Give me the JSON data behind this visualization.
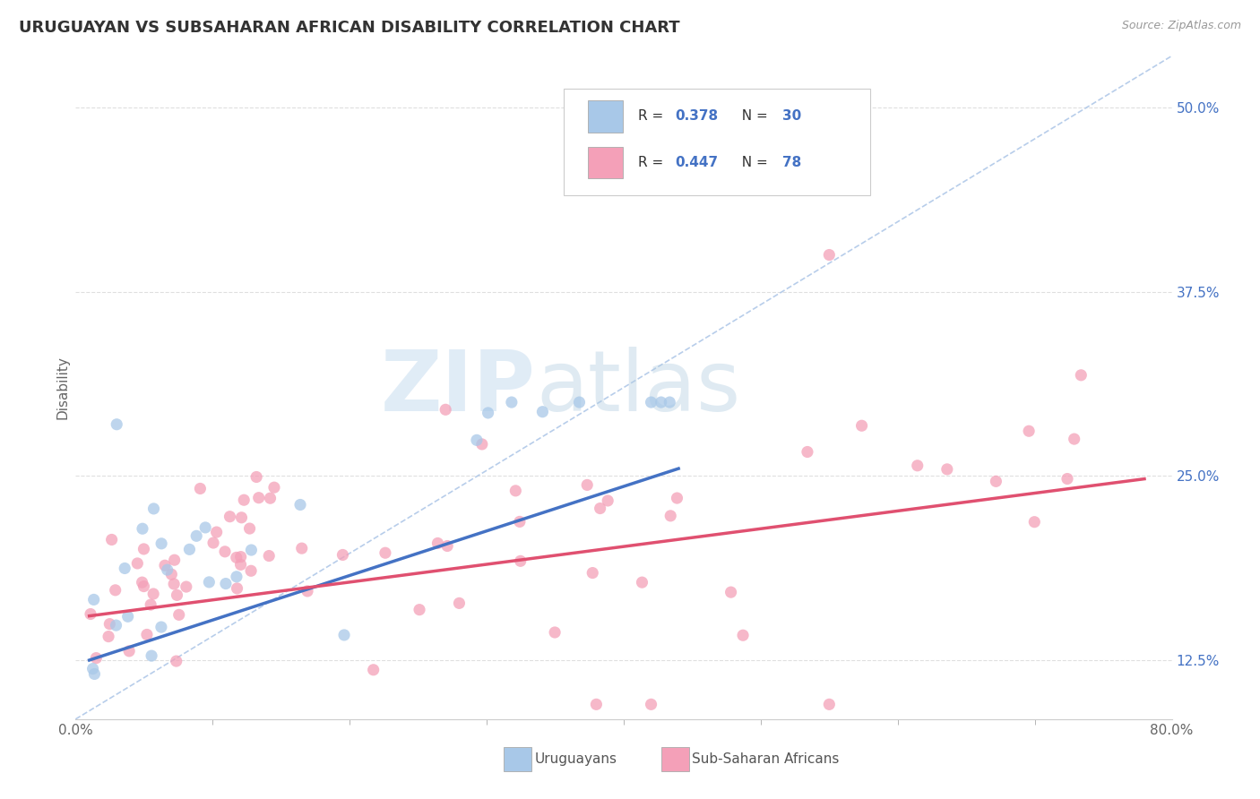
{
  "title": "URUGUAYAN VS SUBSAHARAN AFRICAN DISABILITY CORRELATION CHART",
  "source": "Source: ZipAtlas.com",
  "ylabel": "Disability",
  "xlim": [
    0.0,
    0.8
  ],
  "ylim": [
    0.085,
    0.535
  ],
  "yticks_right": [
    0.125,
    0.25,
    0.375,
    0.5
  ],
  "ytick_right_labels": [
    "12.5%",
    "25.0%",
    "37.5%",
    "50.0%"
  ],
  "color_uruguayan": "#a8c8e8",
  "color_subsaharan": "#f4a0b8",
  "color_blue_line": "#4472c4",
  "color_pink_line": "#e05070",
  "color_dashed": "#b0c8e8",
  "color_text_blue": "#4472c4",
  "color_grid": "#d8d8d8",
  "background_color": "#ffffff",
  "watermark_zip": "ZIP",
  "watermark_atlas": "atlas",
  "legend_r1": "R = 0.378",
  "legend_n1": "N = 30",
  "legend_r2": "R = 0.447",
  "legend_n2": "N = 78",
  "blue_trend_x": [
    0.01,
    0.44
  ],
  "blue_trend_y": [
    0.125,
    0.255
  ],
  "pink_trend_x": [
    0.01,
    0.78
  ],
  "pink_trend_y": [
    0.155,
    0.248
  ]
}
